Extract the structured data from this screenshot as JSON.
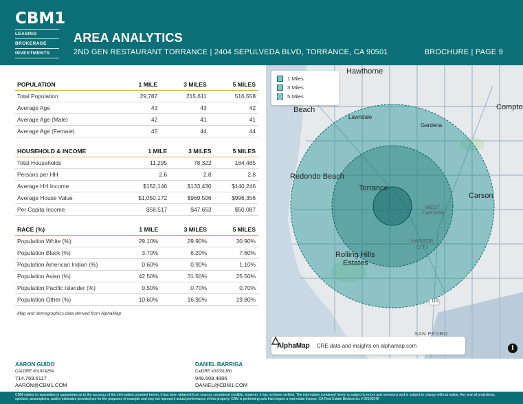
{
  "header": {
    "logo_text": "CBM1",
    "logo_lines": [
      "LEASING",
      "BROKERAGE",
      "INVESTMENTS"
    ],
    "title": "AREA ANALYTICS",
    "subtitle": "2ND GEN RESTAURANT TORRANCE | 2404 SEPULVEDA BLVD, TORRANCE, CA 90501",
    "page": "BROCHURE | PAGE 9"
  },
  "colors": {
    "brand": "#0c6f77",
    "accent": "#d9a640"
  },
  "population": {
    "headers": [
      "POPULATION",
      "1 MILE",
      "3 MILES",
      "5 MILES"
    ],
    "rows": [
      [
        "Total Population",
        "29,787",
        "215,611",
        "516,558"
      ],
      [
        "Average Age",
        "43",
        "43",
        "42"
      ],
      [
        "Average Age (Male)",
        "42",
        "41",
        "41"
      ],
      [
        "Average Age (Female)",
        "45",
        "44",
        "44"
      ]
    ]
  },
  "household": {
    "headers": [
      "HOUSEHOLD & INCOME",
      "1 MILE",
      "3 MILES",
      "5 MILES"
    ],
    "rows": [
      [
        "Total Households",
        "11,295",
        "78,322",
        "184,485"
      ],
      [
        "Persons per HH",
        "2.6",
        "2.8",
        "2.8"
      ],
      [
        "Average HH Income",
        "$152,146",
        "$133,430",
        "$140,246"
      ],
      [
        "Average House Value",
        "$1,050,172",
        "$969,506",
        "$996,356"
      ],
      [
        "Per Capita Income",
        "$58,517",
        "$47,653",
        "$50,087"
      ]
    ]
  },
  "race": {
    "headers": [
      "RACE (%)",
      "1 MILE",
      "3 MILES",
      "5 MILES"
    ],
    "rows": [
      [
        "Population White (%)",
        "29.10%",
        "29.90%",
        "30.90%"
      ],
      [
        "Population Black (%)",
        "3.70%",
        "6.20%",
        "7.60%"
      ],
      [
        "Population American Indian (%)",
        "0.60%",
        "0.90%",
        "1.10%"
      ],
      [
        "Population Asian (%)",
        "42.50%",
        "31.50%",
        "25.50%"
      ],
      [
        "Population Pacific Islander (%)",
        "0.50%",
        "0.70%",
        "0.70%"
      ],
      [
        "Population Other (%)",
        "10.60%",
        "16.90%",
        "19.80%"
      ]
    ]
  },
  "note": "Map and demographics data derived from AlphaMap",
  "map": {
    "legend": [
      "1 Miles",
      "3 Miles",
      "5 Miles"
    ],
    "labels": {
      "hawthorne": "Hawthorne",
      "beach": "Beach",
      "lawndale": "Lawndale",
      "gardena": "Gardena",
      "compton": "Compto",
      "redondo": "Redondo Beach",
      "torrance": "Torrance",
      "carson": "Carson",
      "west": "WEST",
      "carson_small": "CARSON",
      "harbor": "HARBOR",
      "city": "CITY",
      "rolling1": "Rolling Hills",
      "rolling2": "Estates",
      "sanpedro": "SAN PEDRO",
      "highway": "110"
    },
    "brand": "AlphaMap",
    "brand_tagline": "CRE data and insights on alphamap.com",
    "info": "i"
  },
  "contacts": [
    {
      "name": "AARON GUIDO",
      "license": "CALDRE #01924254",
      "phone": "714.769.6117",
      "email": "AARON@CBM1.COM"
    },
    {
      "name": "DANIEL BARRIGA",
      "license": "CalDRE #02031360",
      "phone": "949.608.4886",
      "email": "DANIEL@CBM1.COM"
    }
  ],
  "disclaimer": "CBM makes no warranties or guarantees as to the accuracy of the information provided herein, it has been obtained from sources considered credible, however, it has not been verified. The information contained herein is subject to errors and omissions and is subject to change without notice. Any and all projections, opinions, assumptions, and/or estimates provided are for the purposes of example and may not represent actual performance of this property. CBM is performing acts that require a real estate license. CA Real Estate Brokers Lic # 02130240"
}
